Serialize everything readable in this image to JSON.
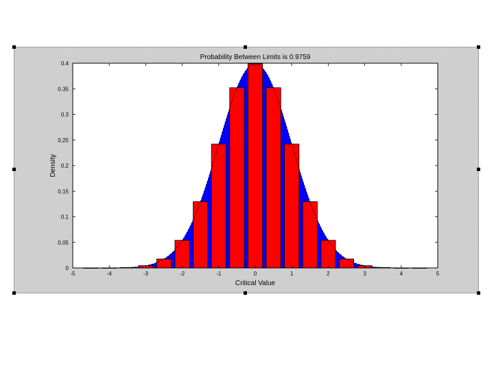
{
  "chart_data": {
    "type": "bar",
    "title": "Probability Between Limits is 0.9759",
    "xlabel": "Critical Value",
    "ylabel": "Density",
    "xlim": [
      -5,
      5
    ],
    "ylim": [
      0,
      0.4
    ],
    "xticks": [
      -5,
      -4,
      -3,
      -2,
      -1,
      0,
      1,
      2,
      3,
      4,
      5
    ],
    "yticks": [
      0,
      0.05,
      0.1,
      0.15,
      0.2,
      0.25,
      0.3,
      0.35,
      0.4
    ],
    "ytick_labels": [
      "0",
      "0.05",
      "0.1",
      "0.15",
      "0.2",
      "0.25",
      "0.3",
      "0.35",
      "0.4"
    ],
    "bar_width": 0.4,
    "series": [
      {
        "kind": "bars",
        "color": "#ff0000",
        "x": [
          -4.5,
          -4.0,
          -3.5,
          -3.0,
          -2.5,
          -2.0,
          -1.5,
          -1.0,
          -0.5,
          0.0,
          0.5,
          1.0,
          1.5,
          2.0,
          2.5,
          3.0,
          3.5,
          4.0,
          4.5
        ],
        "values": [
          0.0,
          0.0001,
          0.0009,
          0.0044,
          0.0175,
          0.054,
          0.1295,
          0.242,
          0.3521,
          0.3989,
          0.3521,
          0.242,
          0.1295,
          0.054,
          0.0175,
          0.0044,
          0.0009,
          0.0001,
          0.0
        ]
      },
      {
        "kind": "area",
        "color": "#0000ff",
        "x_range": [
          -4,
          4
        ],
        "note_visible_fill": "shaded region under standard normal curve between limits"
      },
      {
        "kind": "line",
        "color": "#000000",
        "x_range": [
          -5,
          5
        ]
      }
    ],
    "grid": false
  }
}
